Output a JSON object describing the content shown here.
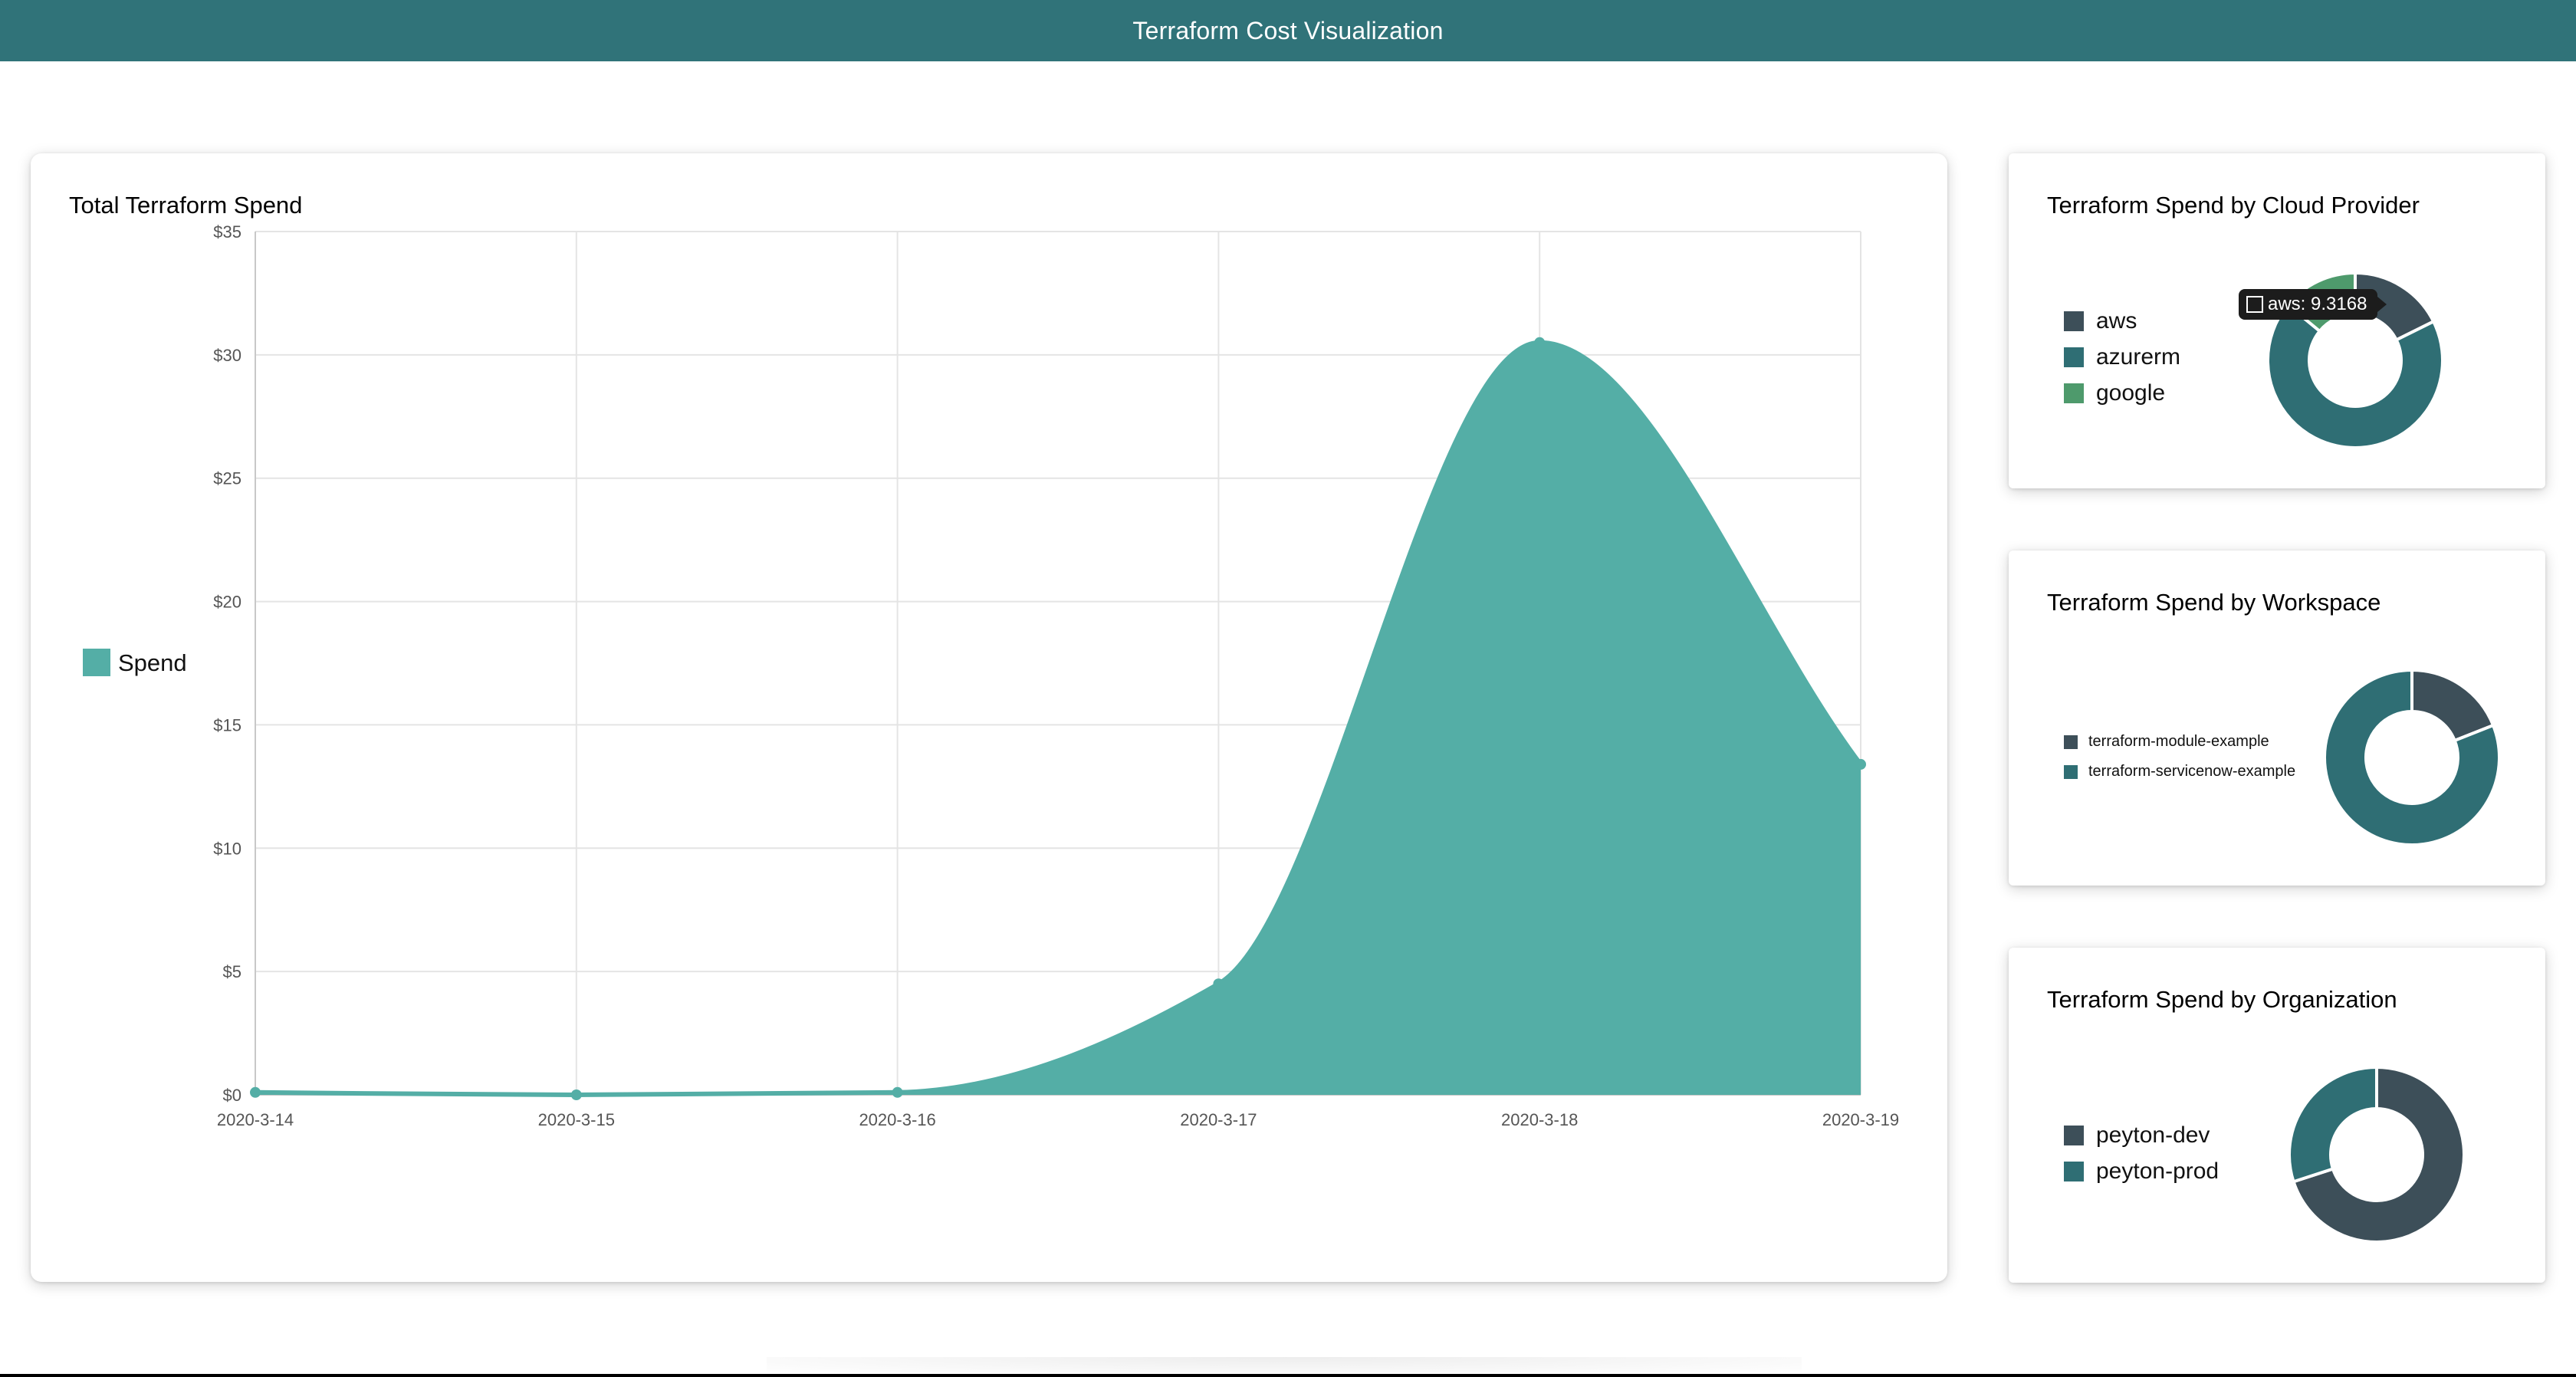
{
  "header": {
    "title": "Terraform Cost Visualization"
  },
  "colors": {
    "header_bg": "#307379",
    "spend": "#54aea6",
    "aws": "#3d4f59",
    "azurerm": "#2f6e74",
    "google": "#4e9a6c"
  },
  "total_spend": {
    "title": "Total Terraform Spend",
    "legend_label": "Spend"
  },
  "provider": {
    "title": "Terraform Spend by Cloud Provider",
    "tooltip": "aws: 9.3168"
  },
  "workspace": {
    "title": "Terraform Spend by Workspace"
  },
  "organization": {
    "title": "Terraform Spend by Organization"
  },
  "chart_data": [
    {
      "type": "area",
      "title": "Total Terraform Spend",
      "x": [
        "2020-3-14",
        "2020-3-15",
        "2020-3-16",
        "2020-3-17",
        "2020-3-18",
        "2020-3-19"
      ],
      "series": [
        {
          "name": "Spend",
          "values": [
            0.1,
            0.0,
            0.1,
            4.5,
            30.5,
            13.4
          ],
          "color": "#54aea6"
        }
      ],
      "yticks": [
        0,
        5,
        10,
        15,
        20,
        25,
        30,
        35
      ],
      "ytick_prefix": "$",
      "ylim": [
        0,
        35
      ],
      "grid": true,
      "legend": "left"
    },
    {
      "type": "pie",
      "title": "Terraform Spend by Cloud Provider",
      "labels": [
        "aws",
        "azurerm",
        "google"
      ],
      "values": [
        9.3168,
        36.0,
        7.4
      ],
      "colors": [
        "#3d4f59",
        "#2f6e74",
        "#4e9a6c"
      ],
      "legend": "left"
    },
    {
      "type": "pie",
      "title": "Terraform Spend by Workspace",
      "labels": [
        "terraform-module-example",
        "terraform-servicenow-example"
      ],
      "values": [
        19,
        81
      ],
      "colors": [
        "#3d4f59",
        "#2f6e74"
      ],
      "legend": "left"
    },
    {
      "type": "pie",
      "title": "Terraform Spend by Organization",
      "labels": [
        "peyton-dev",
        "peyton-prod"
      ],
      "values": [
        70,
        30
      ],
      "colors": [
        "#3d4f59",
        "#2f6e74"
      ],
      "legend": "left"
    }
  ]
}
